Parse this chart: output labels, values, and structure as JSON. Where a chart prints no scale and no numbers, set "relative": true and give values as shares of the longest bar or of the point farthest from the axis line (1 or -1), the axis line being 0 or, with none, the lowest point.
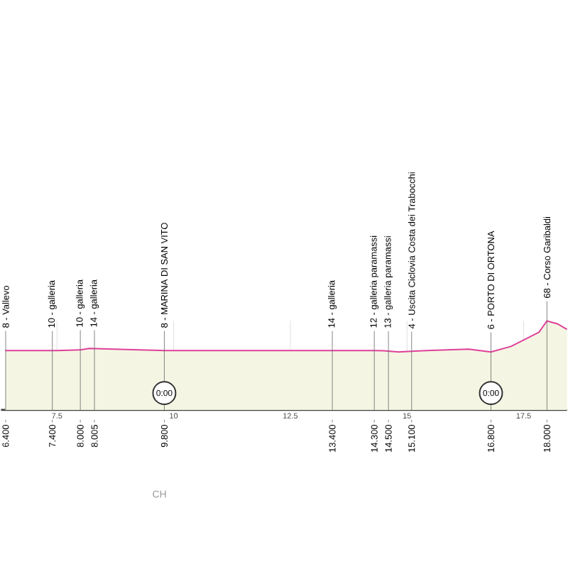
{
  "chart_data": {
    "type": "area",
    "relative": true,
    "color": "#e0409a",
    "grid": "x",
    "x": [
      6.39,
      6.4,
      7.4,
      7.5,
      8.0,
      8.005,
      8.19,
      9.8,
      10.9,
      12.41,
      13.4,
      14.22,
      14.3,
      14.5,
      14.82,
      15.1,
      15.42,
      16.32,
      16.8,
      17.23,
      17.53,
      17.83,
      18.0,
      18.22,
      18.43
    ],
    "values": [
      0.667,
      0.667,
      0.667,
      0.667,
      0.675,
      0.675,
      0.69,
      0.667,
      0.667,
      0.667,
      0.667,
      0.667,
      0.667,
      0.664,
      0.651,
      0.659,
      0.667,
      0.683,
      0.651,
      0.714,
      0.794,
      0.873,
      1.0,
      0.968,
      0.905
    ],
    "xlim": [
      6.3,
      18.43
    ],
    "xticks": [
      7.5,
      10,
      12.5,
      15,
      17.5
    ],
    "annotations": [
      {
        "text": "8 - Vallevo",
        "x": 6.4,
        "y": 0.667
      },
      "6.400",
      {
        "text": "10 - galleria",
        "x": 7.4,
        "y": 0.667
      },
      "7.400",
      {
        "text": "10 - galleria",
        "x": 8.0,
        "y": 0.675
      },
      "8.000",
      {
        "text": "14 - galleria",
        "x": 8.005,
        "y": 0.675
      },
      "8.005",
      {
        "text": "8 - MARINA DI SAN VITO",
        "x": 9.8,
        "y": 0.667
      },
      "9.800",
      {
        "text": "14 - galleria",
        "x": 13.4,
        "y": 0.667
      },
      "13.400",
      {
        "text": "12 - galleria paramassi",
        "x": 14.3,
        "y": 0.667
      },
      "14.300",
      {
        "text": "13 - galleria paramassi",
        "x": 14.5,
        "y": 0.664
      },
      "14.500",
      {
        "text": "4 - Uscita Ciclovia Costa dei Trabocchi",
        "x": 15.1,
        "y": 0.659
      },
      "15.100",
      {
        "text": "6 - PORTO DI ORTONA",
        "x": 16.8,
        "y": 0.651
      },
      "16.800",
      {
        "text": "68 - Corso Garibaldi",
        "x": 18.0,
        "y": 1.0
      },
      "18.000",
      {
        "text": "0:00",
        "x": 9.8,
        "y": 0.19
      },
      {
        "text": "0:00",
        "x": 16.8,
        "y": 0.19
      },
      "CH"
    ]
  }
}
